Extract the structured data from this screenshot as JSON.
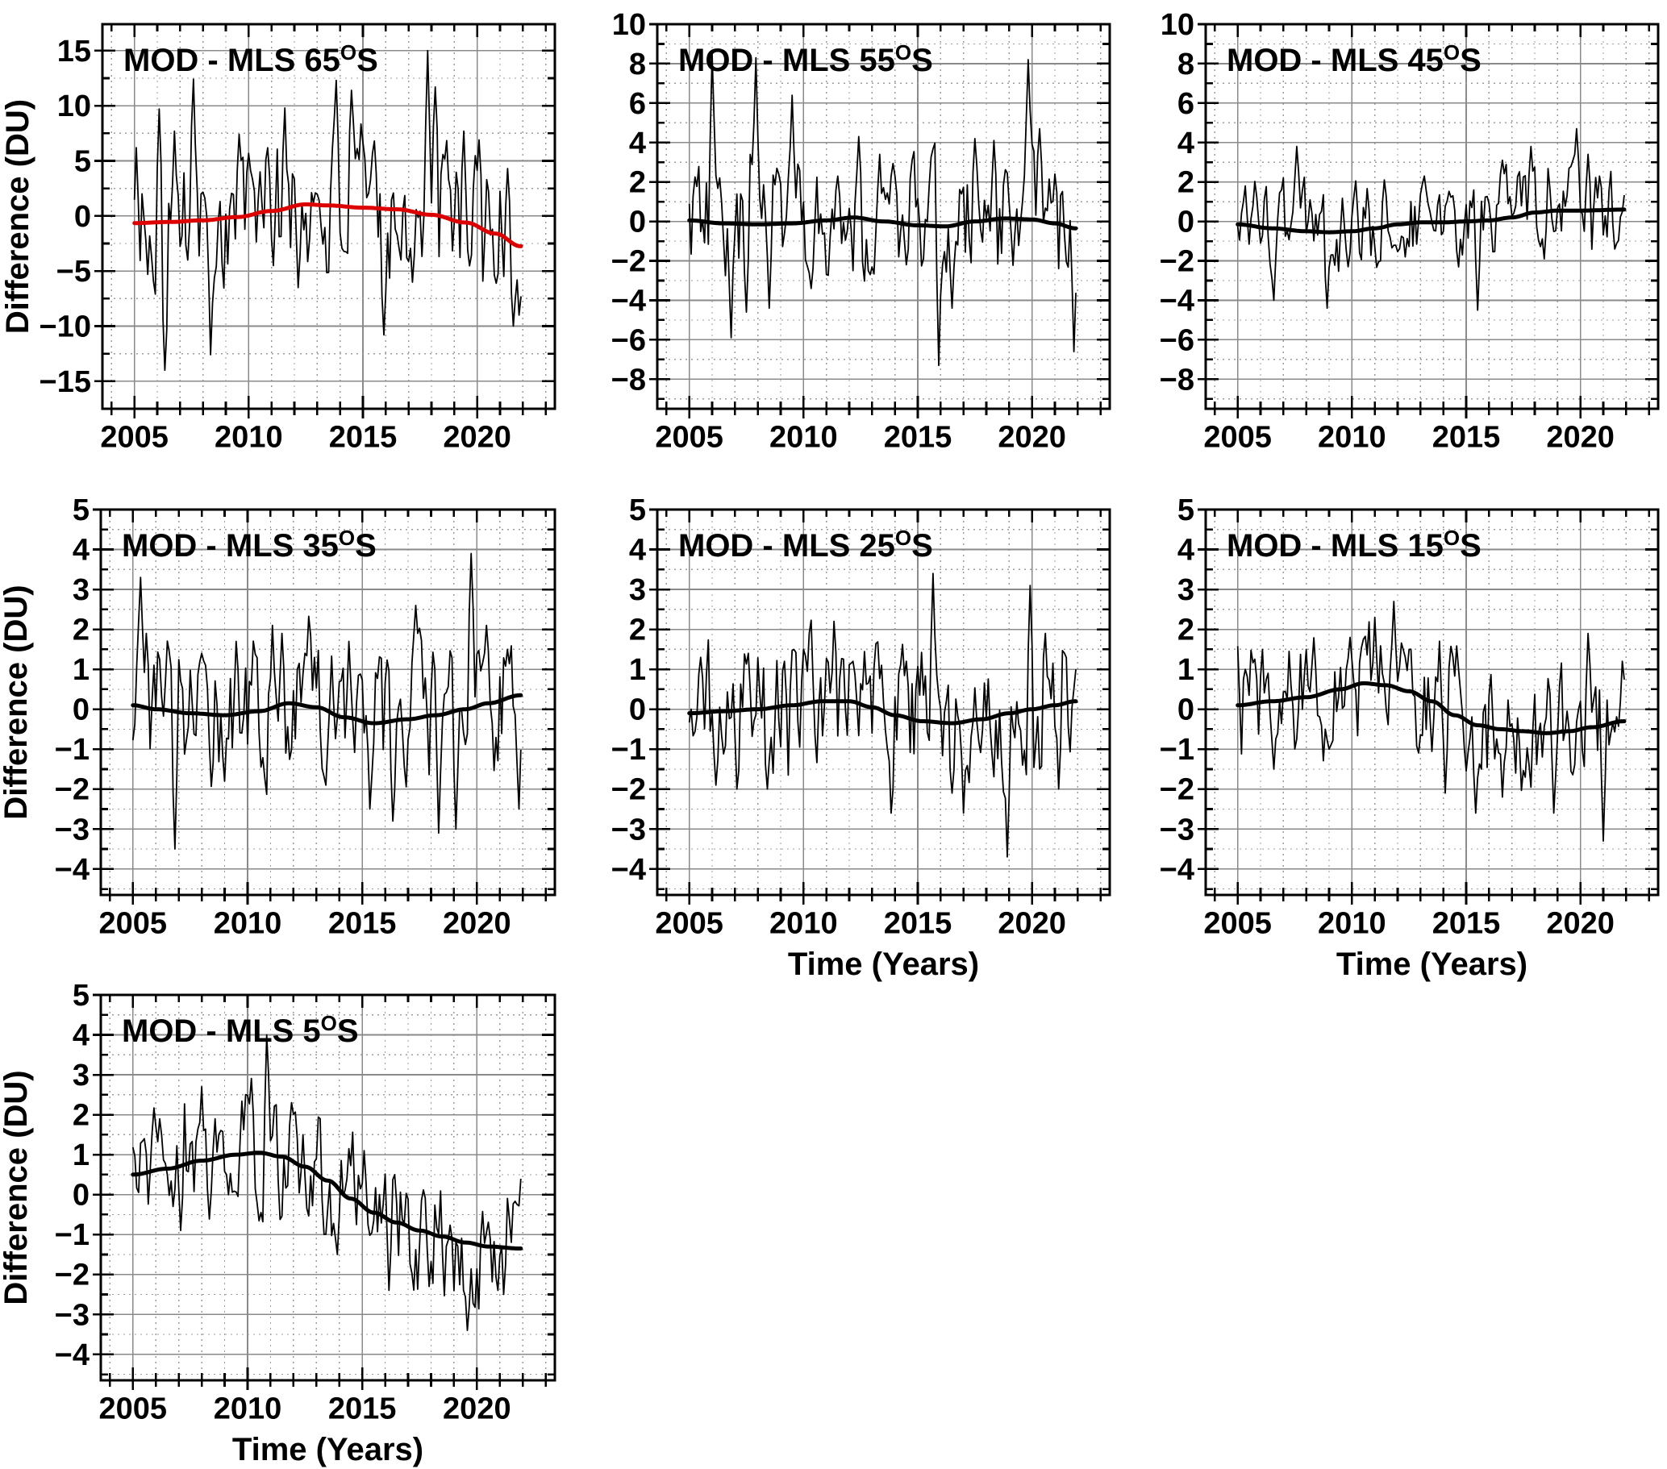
{
  "figure": {
    "description_title": "MOD - MLS ozone difference time series by latitude band",
    "background": "#ffffff"
  },
  "style": {
    "axis_color": "#000000",
    "major_grid_color": "#8a8a8a",
    "minor_grid_color": "#9c9c9c",
    "series_color": "#000000",
    "red_trend_color": "#dd0000",
    "degree_glyph": "O",
    "minus_glyph": "−"
  },
  "chart_data": {
    "type": "line",
    "x_label": "Time (Years)",
    "y_label": "Difference (DU)",
    "x_ticks": [
      2005,
      2010,
      2015,
      2020
    ],
    "x_minor_step": 1,
    "x_domain": [
      2003.6,
      2023.4
    ],
    "data_start_year": 2005.0,
    "samples_per_year": 12,
    "n_samples": 204,
    "panels": [
      {
        "id": "65S",
        "title": "MOD - MLS 65°S",
        "ylim": [
          -17.5,
          17.4
        ],
        "yticks": [
          -15,
          -10,
          -5,
          0,
          5,
          10,
          15
        ],
        "y_minor_step": 2.5,
        "show_ylabel": true,
        "show_xlabel": false,
        "trend_color": "#dd0000",
        "noise": {
          "seed": 101,
          "ar": 0.45,
          "amp": 5.8,
          "clamp": [
            -14.3,
            15.0
          ]
        },
        "trend_knots": [
          [
            2005,
            -0.65
          ],
          [
            2006.5,
            -0.55
          ],
          [
            2008,
            -0.4
          ],
          [
            2009.5,
            -0.1
          ],
          [
            2011,
            0.45
          ],
          [
            2012.5,
            1.05
          ],
          [
            2013.5,
            0.95
          ],
          [
            2015,
            0.75
          ],
          [
            2016.5,
            0.6
          ],
          [
            2018,
            0.1
          ],
          [
            2019.5,
            -0.6
          ],
          [
            2020.8,
            -1.6
          ],
          [
            2021.9,
            -2.75
          ]
        ],
        "extremes": [
          [
            2005.08,
            6.2
          ],
          [
            2005.6,
            -5.3
          ],
          [
            2006.1,
            9.7
          ],
          [
            2006.35,
            -14.0
          ],
          [
            2006.75,
            7.7
          ],
          [
            2007.6,
            12.4
          ],
          [
            2008.35,
            -12.6
          ],
          [
            2009.6,
            7.4
          ],
          [
            2010.5,
            4.0
          ],
          [
            2011.6,
            9.8
          ],
          [
            2012.2,
            -6.5
          ],
          [
            2013.8,
            12.3
          ],
          [
            2014.5,
            11.4
          ],
          [
            2015.5,
            6.8
          ],
          [
            2015.9,
            -10.8
          ],
          [
            2017.8,
            15.0
          ],
          [
            2018.2,
            11.7
          ],
          [
            2019.4,
            7.7
          ],
          [
            2020.1,
            6.9
          ],
          [
            2021.3,
            4.3
          ],
          [
            2021.6,
            -10.0
          ],
          [
            2021.8,
            -9.0
          ]
        ]
      },
      {
        "id": "55S",
        "title": "MOD - MLS 55°S",
        "ylim": [
          -9.5,
          10.0
        ],
        "yticks": [
          -8,
          -6,
          -4,
          -2,
          0,
          2,
          4,
          6,
          8,
          10
        ],
        "y_minor_step": 1,
        "show_ylabel": false,
        "show_xlabel": false,
        "trend_color": "#000000",
        "noise": {
          "seed": 202,
          "ar": 0.45,
          "amp": 2.6,
          "clamp": [
            -7.4,
            8.6
          ]
        },
        "trend_knots": [
          [
            2005,
            0.05
          ],
          [
            2006.5,
            -0.1
          ],
          [
            2008,
            -0.15
          ],
          [
            2009.5,
            -0.1
          ],
          [
            2011,
            0.05
          ],
          [
            2012.2,
            0.2
          ],
          [
            2013.5,
            0.0
          ],
          [
            2015,
            -0.2
          ],
          [
            2016.2,
            -0.25
          ],
          [
            2017.5,
            0.0
          ],
          [
            2018.8,
            0.15
          ],
          [
            2020,
            0.1
          ],
          [
            2021,
            -0.1
          ],
          [
            2021.9,
            -0.35
          ]
        ],
        "extremes": [
          [
            2006.0,
            8.5
          ],
          [
            2006.85,
            -5.9
          ],
          [
            2007.5,
            -4.6
          ],
          [
            2007.95,
            8.3
          ],
          [
            2008.5,
            -4.4
          ],
          [
            2009.5,
            6.4
          ],
          [
            2010.3,
            -3.4
          ],
          [
            2011.5,
            2.3
          ],
          [
            2012.4,
            4.3
          ],
          [
            2013.3,
            3.4
          ],
          [
            2014.5,
            -2.2
          ],
          [
            2015.9,
            -7.3
          ],
          [
            2016.5,
            -4.4
          ],
          [
            2017.5,
            4.2
          ],
          [
            2018.3,
            4.1
          ],
          [
            2019.8,
            8.2
          ],
          [
            2020.3,
            4.7
          ],
          [
            2021.0,
            2.4
          ],
          [
            2021.85,
            -6.6
          ]
        ]
      },
      {
        "id": "45S",
        "title": "MOD - MLS 45°S",
        "ylim": [
          -9.5,
          10.0
        ],
        "yticks": [
          -8,
          -6,
          -4,
          -2,
          0,
          2,
          4,
          6,
          8,
          10
        ],
        "y_minor_step": 1,
        "show_ylabel": false,
        "show_xlabel": false,
        "trend_color": "#000000",
        "noise": {
          "seed": 303,
          "ar": 0.45,
          "amp": 1.85,
          "clamp": [
            -4.5,
            4.75
          ]
        },
        "trend_knots": [
          [
            2005,
            -0.15
          ],
          [
            2006.5,
            -0.35
          ],
          [
            2008,
            -0.5
          ],
          [
            2009,
            -0.55
          ],
          [
            2010,
            -0.5
          ],
          [
            2011,
            -0.35
          ],
          [
            2012,
            -0.15
          ],
          [
            2013,
            -0.05
          ],
          [
            2014,
            -0.05
          ],
          [
            2015,
            0.0
          ],
          [
            2016,
            0.05
          ],
          [
            2017,
            0.2
          ],
          [
            2018,
            0.45
          ],
          [
            2019,
            0.55
          ],
          [
            2020,
            0.55
          ],
          [
            2021.9,
            0.6
          ]
        ],
        "extremes": [
          [
            2005.3,
            1.8
          ],
          [
            2006.6,
            -4.0
          ],
          [
            2007.6,
            3.8
          ],
          [
            2008.9,
            -4.4
          ],
          [
            2009.8,
            -2.3
          ],
          [
            2011.4,
            2.1
          ],
          [
            2012.3,
            -1.8
          ],
          [
            2013.2,
            2.3
          ],
          [
            2014.4,
            1.3
          ],
          [
            2015.5,
            -4.5
          ],
          [
            2016.6,
            3.1
          ],
          [
            2017.8,
            3.8
          ],
          [
            2018.4,
            -1.9
          ],
          [
            2019.85,
            4.7
          ],
          [
            2020.3,
            3.4
          ],
          [
            2020.8,
            2.3
          ],
          [
            2021.5,
            -1.4
          ]
        ]
      },
      {
        "id": "35S",
        "title": "MOD - MLS 35°S",
        "ylim": [
          -4.65,
          5.0
        ],
        "yticks": [
          -4,
          -3,
          -2,
          -1,
          0,
          1,
          2,
          3,
          4,
          5
        ],
        "y_minor_step": 0.5,
        "show_ylabel": true,
        "show_xlabel": false,
        "trend_color": "#000000",
        "noise": {
          "seed": 404,
          "ar": 0.45,
          "amp": 1.5,
          "clamp": [
            -3.6,
            3.95
          ]
        },
        "trend_knots": [
          [
            2005,
            0.1
          ],
          [
            2006,
            0.0
          ],
          [
            2007.5,
            -0.1
          ],
          [
            2009,
            -0.15
          ],
          [
            2010.5,
            -0.05
          ],
          [
            2011.8,
            0.15
          ],
          [
            2013,
            0.05
          ],
          [
            2014.2,
            -0.2
          ],
          [
            2015.5,
            -0.35
          ],
          [
            2017,
            -0.25
          ],
          [
            2018.2,
            -0.15
          ],
          [
            2019.5,
            0.0
          ],
          [
            2020.5,
            0.15
          ],
          [
            2021.9,
            0.35
          ]
        ],
        "extremes": [
          [
            2005.35,
            3.3
          ],
          [
            2005.6,
            1.9
          ],
          [
            2006.85,
            -3.5
          ],
          [
            2008.0,
            1.4
          ],
          [
            2009.5,
            1.7
          ],
          [
            2011.05,
            2.1
          ],
          [
            2011.5,
            1.9
          ],
          [
            2012.5,
            1.4
          ],
          [
            2013.4,
            -1.9
          ],
          [
            2014.4,
            1.7
          ],
          [
            2015.3,
            -2.5
          ],
          [
            2016.3,
            -2.8
          ],
          [
            2017.3,
            2.6
          ],
          [
            2018.35,
            -3.1
          ],
          [
            2019.1,
            -3.0
          ],
          [
            2019.75,
            3.9
          ],
          [
            2020.4,
            2.1
          ],
          [
            2021.3,
            1.5
          ],
          [
            2021.85,
            -2.5
          ]
        ]
      },
      {
        "id": "25S",
        "title": "MOD - MLS 25°S",
        "ylim": [
          -4.65,
          5.0
        ],
        "yticks": [
          -4,
          -3,
          -2,
          -1,
          0,
          1,
          2,
          3,
          4,
          5
        ],
        "y_minor_step": 0.5,
        "show_ylabel": false,
        "show_xlabel": true,
        "trend_color": "#000000",
        "noise": {
          "seed": 505,
          "ar": 0.45,
          "amp": 1.45,
          "clamp": [
            -3.75,
            3.45
          ]
        },
        "trend_knots": [
          [
            2005,
            -0.1
          ],
          [
            2006.5,
            -0.05
          ],
          [
            2008,
            0.0
          ],
          [
            2009.5,
            0.1
          ],
          [
            2010.8,
            0.2
          ],
          [
            2012,
            0.2
          ],
          [
            2013,
            0.05
          ],
          [
            2014,
            -0.15
          ],
          [
            2015.2,
            -0.3
          ],
          [
            2016.5,
            -0.35
          ],
          [
            2017.8,
            -0.25
          ],
          [
            2019,
            -0.1
          ],
          [
            2020,
            0.0
          ],
          [
            2021,
            0.1
          ],
          [
            2021.9,
            0.2
          ]
        ],
        "extremes": [
          [
            2005.5,
            1.3
          ],
          [
            2006.2,
            -1.9
          ],
          [
            2007.1,
            -2.0
          ],
          [
            2007.6,
            1.4
          ],
          [
            2008.4,
            -2.0
          ],
          [
            2009.2,
            1.2
          ],
          [
            2010.0,
            1.5
          ],
          [
            2011.3,
            2.2
          ],
          [
            2012.2,
            1.2
          ],
          [
            2013.8,
            -2.6
          ],
          [
            2014.5,
            1.2
          ],
          [
            2015.7,
            3.4
          ],
          [
            2016.5,
            -2.1
          ],
          [
            2017.0,
            -2.6
          ],
          [
            2018.9,
            -3.7
          ],
          [
            2019.9,
            3.1
          ],
          [
            2020.6,
            1.9
          ],
          [
            2021.2,
            -2.0
          ],
          [
            2021.9,
            1.0
          ]
        ]
      },
      {
        "id": "15S",
        "title": "MOD - MLS 15°S",
        "ylim": [
          -4.65,
          5.0
        ],
        "yticks": [
          -4,
          -3,
          -2,
          -1,
          0,
          1,
          2,
          3,
          4,
          5
        ],
        "y_minor_step": 0.5,
        "show_ylabel": false,
        "show_xlabel": true,
        "trend_color": "#000000",
        "noise": {
          "seed": 606,
          "ar": 0.45,
          "amp": 1.35,
          "clamp": [
            -3.35,
            2.75
          ]
        },
        "trend_knots": [
          [
            2005,
            0.1
          ],
          [
            2006.5,
            0.2
          ],
          [
            2008,
            0.3
          ],
          [
            2009.5,
            0.5
          ],
          [
            2010.5,
            0.65
          ],
          [
            2011.5,
            0.6
          ],
          [
            2012.5,
            0.45
          ],
          [
            2013.5,
            0.2
          ],
          [
            2014.5,
            -0.15
          ],
          [
            2015.5,
            -0.4
          ],
          [
            2016.5,
            -0.5
          ],
          [
            2017.5,
            -0.55
          ],
          [
            2018.5,
            -0.6
          ],
          [
            2019.5,
            -0.55
          ],
          [
            2020.5,
            -0.45
          ],
          [
            2021.9,
            -0.3
          ]
        ],
        "extremes": [
          [
            2005.3,
            1.0
          ],
          [
            2006.1,
            1.5
          ],
          [
            2006.6,
            -1.5
          ],
          [
            2008.0,
            1.5
          ],
          [
            2009.0,
            -1.0
          ],
          [
            2009.9,
            1.8
          ],
          [
            2011.0,
            2.3
          ],
          [
            2011.8,
            2.7
          ],
          [
            2012.5,
            1.5
          ],
          [
            2014.1,
            -2.1
          ],
          [
            2015.4,
            -2.6
          ],
          [
            2016.6,
            -2.2
          ],
          [
            2017.6,
            -1.7
          ],
          [
            2018.8,
            -2.6
          ],
          [
            2020.3,
            1.9
          ],
          [
            2021.0,
            -3.3
          ],
          [
            2021.85,
            1.2
          ]
        ]
      },
      {
        "id": "5S",
        "title": "MOD - MLS 5°S",
        "ylim": [
          -4.65,
          5.0
        ],
        "yticks": [
          -4,
          -3,
          -2,
          -1,
          0,
          1,
          2,
          3,
          4,
          5
        ],
        "y_minor_step": 0.5,
        "show_ylabel": true,
        "show_xlabel": true,
        "trend_color": "#000000",
        "noise": {
          "seed": 707,
          "ar": 0.45,
          "amp": 1.35,
          "clamp": [
            -3.45,
            4.0
          ]
        },
        "trend_knots": [
          [
            2005,
            0.5
          ],
          [
            2006.5,
            0.65
          ],
          [
            2008,
            0.85
          ],
          [
            2009.5,
            1.0
          ],
          [
            2010.5,
            1.05
          ],
          [
            2011.5,
            0.95
          ],
          [
            2012.5,
            0.7
          ],
          [
            2013.5,
            0.35
          ],
          [
            2014.5,
            -0.1
          ],
          [
            2015.5,
            -0.45
          ],
          [
            2016.5,
            -0.7
          ],
          [
            2017.5,
            -0.9
          ],
          [
            2018.5,
            -1.05
          ],
          [
            2019.5,
            -1.2
          ],
          [
            2020.5,
            -1.3
          ],
          [
            2021.9,
            -1.35
          ]
        ],
        "extremes": [
          [
            2005.5,
            1.4
          ],
          [
            2006.2,
            1.9
          ],
          [
            2007.1,
            -0.9
          ],
          [
            2008.0,
            2.7
          ],
          [
            2008.6,
            1.9
          ],
          [
            2010.85,
            4.0
          ],
          [
            2011.9,
            2.3
          ],
          [
            2012.4,
            1.5
          ],
          [
            2013.9,
            -1.5
          ],
          [
            2015.1,
            1.1
          ],
          [
            2016.2,
            -2.4
          ],
          [
            2017.9,
            -2.3
          ],
          [
            2019.6,
            -3.4
          ],
          [
            2020.9,
            -2.4
          ],
          [
            2021.2,
            -2.5
          ],
          [
            2021.9,
            0.4
          ]
        ]
      }
    ]
  }
}
